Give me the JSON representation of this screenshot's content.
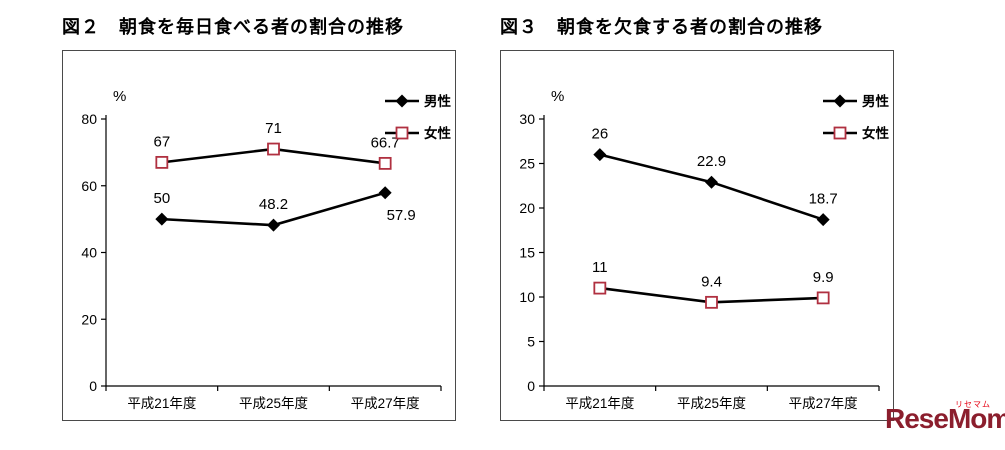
{
  "figures": [
    {
      "title": "図２　朝食を毎日食べる者の割合の推移"
    },
    {
      "title": "図３　朝食を欠食する者の割合の推移"
    }
  ],
  "logo": {
    "text": "ReseMom.",
    "ruby": "リセマム",
    "color": "#8b1e2d",
    "ruby_color": "#e60012"
  },
  "chart_data": [
    {
      "type": "line",
      "title": "図２　朝食を毎日食べる者の割合の推移",
      "xlabel": "",
      "ylabel": "%",
      "categories": [
        "平成21年度",
        "平成25年度",
        "平成27年度"
      ],
      "series": [
        {
          "name": "男性",
          "values": [
            50,
            48.2,
            57.9
          ],
          "labels": [
            "50",
            "48.2",
            "57.9"
          ],
          "marker": "diamond-filled",
          "line_color": "#000000",
          "marker_color": "#000000",
          "label_offsets": [
            [
              0,
              -16
            ],
            [
              0,
              -16
            ],
            [
              16,
              27
            ]
          ]
        },
        {
          "name": "女性",
          "values": [
            67,
            71,
            66.7
          ],
          "labels": [
            "67",
            "71",
            "66.7"
          ],
          "marker": "square-open",
          "line_color": "#000000",
          "marker_color": "#b03040",
          "label_offsets": [
            [
              0,
              -16
            ],
            [
              0,
              -16
            ],
            [
              0,
              -16
            ]
          ]
        }
      ],
      "ylim": [
        0,
        80
      ],
      "yticks": [
        0,
        20,
        40,
        60,
        80
      ],
      "grid": false,
      "legend_position": "top-right"
    },
    {
      "type": "line",
      "title": "図３　朝食を欠食する者の割合の推移",
      "xlabel": "",
      "ylabel": "%",
      "categories": [
        "平成21年度",
        "平成25年度",
        "平成27年度"
      ],
      "series": [
        {
          "name": "男性",
          "values": [
            26,
            22.9,
            18.7
          ],
          "labels": [
            "26",
            "22.9",
            "18.7"
          ],
          "marker": "diamond-filled",
          "line_color": "#000000",
          "marker_color": "#000000",
          "label_offsets": [
            [
              0,
              -16
            ],
            [
              0,
              -16
            ],
            [
              0,
              -16
            ]
          ]
        },
        {
          "name": "女性",
          "values": [
            11,
            9.4,
            9.9
          ],
          "labels": [
            "11",
            "9.4",
            "9.9"
          ],
          "marker": "square-open",
          "line_color": "#000000",
          "marker_color": "#b03040",
          "label_offsets": [
            [
              0,
              -16
            ],
            [
              0,
              -16
            ],
            [
              0,
              -16
            ]
          ]
        }
      ],
      "ylim": [
        0,
        30
      ],
      "yticks": [
        0,
        5,
        10,
        15,
        20,
        25,
        30
      ],
      "grid": false,
      "legend_position": "top-right"
    }
  ]
}
